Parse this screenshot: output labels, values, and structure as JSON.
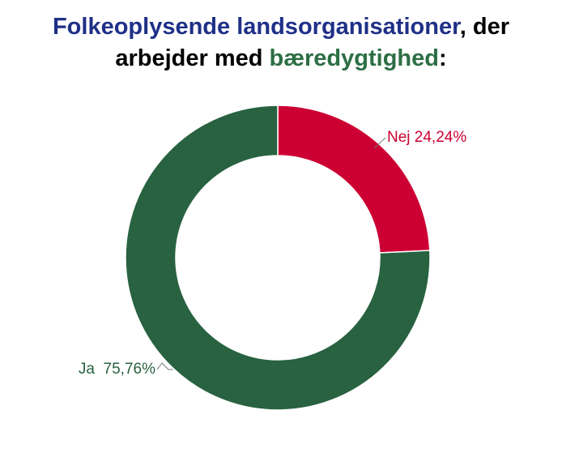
{
  "title": {
    "line1_part1": "Folkeoplysende landsorganisationer",
    "line1_part2": ", der",
    "line2_part1": "arbejder med ",
    "line2_part2": "bæredygtighed",
    "line2_part3": ":",
    "color_main": "#000000",
    "color_highlight_blue": "#1f3087",
    "color_highlight_green": "#2d6e45"
  },
  "chart_data": {
    "type": "pie",
    "style": "donut",
    "slices": [
      {
        "label": "Nej",
        "value": 24.24,
        "display": "Nej 24,24%",
        "color": "#cc0033"
      },
      {
        "label": "Ja",
        "value": 75.76,
        "display": "Ja  75,76%",
        "color": "#286240"
      }
    ]
  }
}
